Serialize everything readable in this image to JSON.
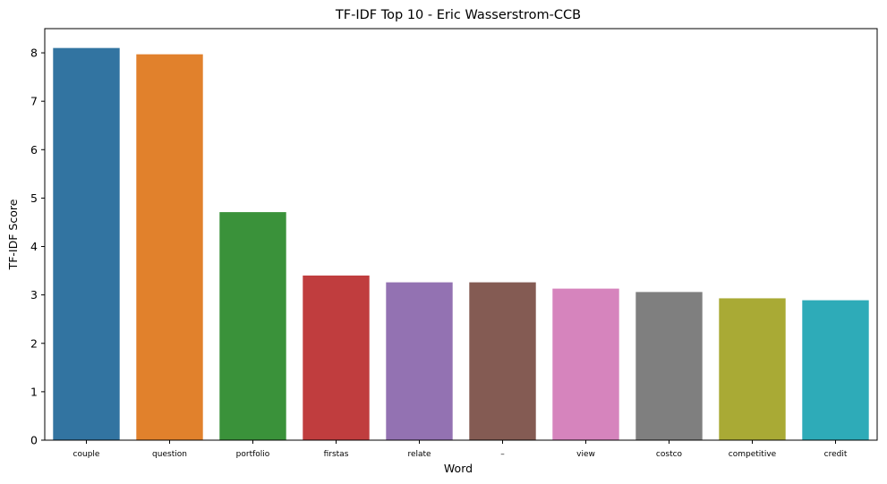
{
  "chart_data": {
    "type": "bar",
    "title": "TF-IDF Top 10 - Eric Wasserstrom-CCB",
    "xlabel": "Word",
    "ylabel": "TF-IDF Score",
    "categories": [
      "couple",
      "question",
      "portfolio",
      "firstas",
      "relate",
      "–",
      "view",
      "costco",
      "competitive",
      "credit"
    ],
    "values": [
      8.1,
      7.97,
      4.71,
      3.4,
      3.26,
      3.26,
      3.13,
      3.06,
      2.93,
      2.89
    ],
    "colors": [
      "#3274a1",
      "#e1812c",
      "#3a923a",
      "#c03d3e",
      "#9372b2",
      "#845b53",
      "#d684bd",
      "#7f7f7f",
      "#a9aa35",
      "#2eabb8"
    ],
    "ylim": [
      0,
      8.5
    ],
    "yticks": [
      "0",
      "1",
      "2",
      "3",
      "4",
      "5",
      "6",
      "7",
      "8"
    ],
    "grid": false,
    "legend": "none"
  }
}
